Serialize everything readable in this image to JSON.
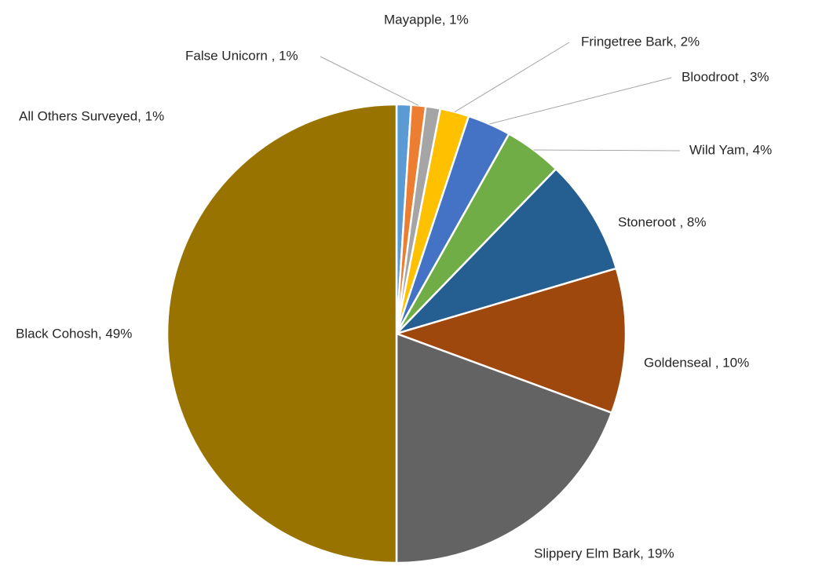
{
  "chart_data": {
    "type": "pie",
    "slices": [
      {
        "label": "All Others Surveyed",
        "display": "All Others Surveyed, 1%",
        "value": 1,
        "color": "#5b9bd5"
      },
      {
        "label": "False Unicorn",
        "display": "False Unicorn , 1%",
        "value": 1,
        "color": "#ed7d31"
      },
      {
        "label": "Mayapple",
        "display": "Mayapple, 1%",
        "value": 1,
        "color": "#a5a5a5"
      },
      {
        "label": "Fringetree Bark",
        "display": "Fringetree Bark, 2%",
        "value": 2,
        "color": "#ffc000"
      },
      {
        "label": "Bloodroot",
        "display": "Bloodroot , 3%",
        "value": 3,
        "color": "#4472c4"
      },
      {
        "label": "Wild Yam",
        "display": "Wild Yam, 4%",
        "value": 4,
        "color": "#70ad47"
      },
      {
        "label": "Stoneroot",
        "display": "Stoneroot , 8%",
        "value": 8,
        "color": "#255e91"
      },
      {
        "label": "Goldenseal",
        "display": "Goldenseal , 10%",
        "value": 10,
        "color": "#9e480e"
      },
      {
        "label": "Slippery Elm Bark",
        "display": "Slippery Elm Bark, 19%",
        "value": 19,
        "color": "#636363"
      },
      {
        "label": "Black Cohosh",
        "display": "Black Cohosh, 49%",
        "value": 49,
        "color": "#997300"
      }
    ],
    "legend": "none",
    "data_labels": "outside"
  }
}
